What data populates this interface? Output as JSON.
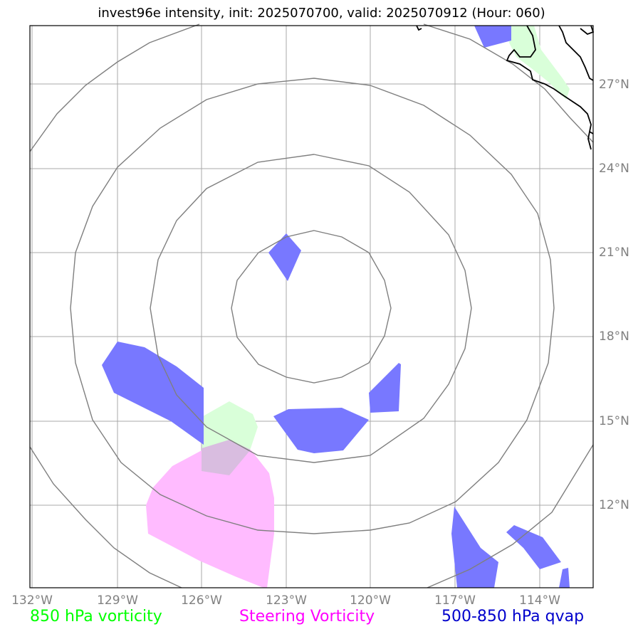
{
  "title": "invest96e intensity, init: 2025070700, valid: 2025070912 (Hour: 060)",
  "lon_labels": [
    "132°W",
    "129°W",
    "126°W",
    "123°W",
    "120°W",
    "117°W",
    "114°W"
  ],
  "lat_labels": [
    "27°N",
    "24°N",
    "21°N",
    "18°N",
    "15°N",
    "12°N"
  ],
  "legend": [
    {
      "label": "850 hPa vorticity",
      "color": "#00ff00"
    },
    {
      "label": "Steering Vorticity",
      "color": "#ff00ff"
    },
    {
      "label": "500-850 hPa qvap",
      "color": "#0000cc"
    }
  ],
  "colors": {
    "grid": "#a0a0a0",
    "range_rings": "#808080",
    "coastline": "#000000",
    "vorticity_850_fill": "#ccffcc",
    "steering_vorticity_fill": "#ffaaff",
    "qvap_fill": "#6666ff"
  }
}
